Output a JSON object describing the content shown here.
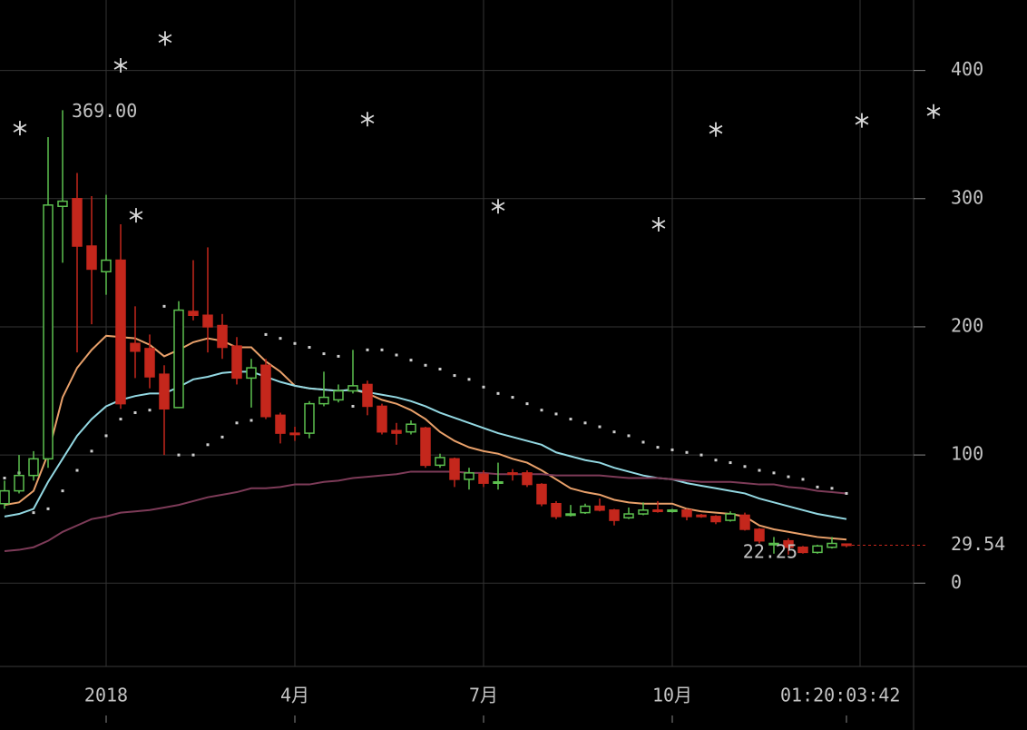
{
  "chart_data": {
    "type": "candlestick",
    "categories": [
      null,
      null,
      null,
      null,
      null,
      null,
      null,
      "2018",
      null,
      null,
      null,
      null,
      null,
      null,
      null,
      null,
      null,
      null,
      null,
      null,
      "4月",
      null,
      null,
      null,
      null,
      null,
      null,
      null,
      null,
      null,
      null,
      null,
      null,
      "7月",
      null,
      null,
      null,
      null,
      null,
      null,
      null,
      null,
      null,
      null,
      null,
      null,
      "10月",
      null,
      null,
      null,
      null,
      null,
      null,
      null,
      null,
      null,
      null,
      null,
      null
    ],
    "open": [
      62,
      72,
      84,
      97,
      294,
      300,
      263,
      243,
      252,
      187,
      183,
      163,
      137,
      212,
      209,
      201,
      185,
      160,
      170,
      131,
      117,
      117,
      140,
      143,
      150,
      155,
      138,
      119,
      118,
      121,
      92,
      97,
      81,
      85,
      78,
      86,
      86,
      77,
      62,
      53,
      55,
      60,
      57,
      51,
      54,
      57,
      56,
      57,
      53,
      52,
      49,
      53,
      42,
      30,
      33,
      28,
      24,
      28,
      30.5
    ],
    "high": [
      80,
      100,
      103,
      348,
      369,
      320,
      302,
      303,
      280,
      216,
      194,
      170,
      220,
      252,
      262,
      210,
      192,
      175,
      175,
      133,
      122,
      142,
      165,
      155,
      182,
      158,
      140,
      125,
      127,
      122,
      101,
      98,
      90,
      88,
      94,
      89,
      88,
      78,
      64,
      61,
      62,
      66,
      58,
      59,
      63,
      64,
      58,
      58,
      54,
      53,
      56,
      55,
      43,
      36,
      35,
      29,
      30,
      36,
      31
    ],
    "low": [
      58,
      70,
      80,
      90,
      250,
      180,
      202,
      225,
      136,
      160,
      152,
      100,
      137,
      205,
      180,
      175,
      155,
      137,
      128,
      109,
      111,
      113,
      138,
      141,
      148,
      131,
      116,
      108,
      116,
      90,
      90,
      75,
      73,
      75,
      73,
      80,
      75,
      60,
      50,
      52,
      54,
      56,
      45,
      50,
      53,
      55,
      55,
      49,
      51,
      46,
      48,
      41,
      31,
      23,
      22.25,
      23,
      23,
      27,
      28
    ],
    "close": [
      72,
      84,
      97,
      295,
      298,
      263,
      245,
      252,
      140,
      181,
      161,
      136,
      213,
      209,
      200,
      184,
      160,
      168,
      130,
      117,
      116,
      140,
      145,
      150,
      154,
      138,
      118,
      117,
      124,
      92,
      98,
      81,
      86,
      78,
      79,
      85,
      77,
      62,
      52,
      54,
      60,
      57,
      49,
      54,
      57,
      56,
      57,
      52,
      52,
      48,
      54,
      42,
      33,
      31,
      28,
      24,
      29,
      31,
      29.54
    ],
    "up_color": "#5cc04f",
    "down_color": "#c4271c",
    "lines": [
      {
        "color": "#e8a06a",
        "values": [
          61,
          63,
          72,
          101,
          145,
          168,
          182,
          193,
          192,
          191,
          186,
          177,
          182,
          188,
          191,
          189,
          184,
          184,
          173,
          165,
          154,
          152,
          151,
          150,
          151,
          148,
          143,
          140,
          135,
          128,
          118,
          111,
          106,
          103,
          101,
          97,
          94,
          88,
          81,
          74,
          71,
          69,
          65,
          63,
          62,
          62,
          62,
          58,
          56,
          55,
          54,
          52,
          45,
          42,
          40,
          38,
          36,
          35,
          34
        ]
      },
      {
        "color": "#93d8e2",
        "values": [
          52,
          54,
          58,
          79,
          97,
          115,
          128,
          138,
          143,
          146,
          148,
          148,
          153,
          159,
          161,
          164,
          165,
          165,
          161,
          157,
          154,
          152,
          151,
          150,
          151,
          149,
          147,
          145,
          142,
          138,
          133,
          129,
          125,
          121,
          117,
          114,
          111,
          108,
          102,
          99,
          96,
          94,
          90,
          87,
          84,
          82,
          81,
          78,
          76,
          74,
          72,
          70,
          66,
          63,
          60,
          57,
          54,
          52,
          50
        ]
      },
      {
        "color": "#7d3b58",
        "values": [
          25,
          26,
          28,
          33,
          40,
          45,
          50,
          52,
          55,
          56,
          57,
          59,
          61,
          64,
          67,
          69,
          71,
          74,
          74,
          75,
          77,
          77,
          79,
          80,
          82,
          83,
          84,
          85,
          87,
          87,
          87,
          87,
          86,
          86,
          85,
          85,
          85,
          85,
          84,
          84,
          84,
          84,
          83,
          82,
          82,
          82,
          81,
          80,
          79,
          79,
          79,
          78,
          77,
          77,
          75,
          74,
          72,
          71,
          70
        ]
      }
    ],
    "sar": {
      "color": "#cfcfcf",
      "values": [
        82,
        86,
        55,
        58,
        72,
        88,
        103,
        115,
        128,
        133,
        135,
        216,
        100,
        100,
        108,
        114,
        125,
        127,
        194,
        191,
        187,
        184,
        179,
        177,
        138,
        182,
        182,
        178,
        174,
        170,
        167,
        162,
        159,
        153,
        148,
        145,
        140,
        135,
        132,
        128,
        125,
        122,
        118,
        115,
        110,
        106,
        104,
        102,
        100,
        96,
        94,
        91,
        88,
        86,
        83,
        81,
        75,
        74,
        70
      ]
    },
    "markers": {
      "color": "#d8d8d8",
      "x": [
        1.06,
        8,
        11.06,
        9.06,
        25,
        34,
        45.06,
        49,
        59.06,
        64
      ],
      "values": [
        355,
        404,
        425,
        287,
        362,
        294,
        280,
        354,
        361,
        368
      ]
    },
    "ylim": [
      -65,
      455
    ],
    "yticks": [
      0,
      100,
      200,
      300,
      400
    ],
    "grid": true,
    "max_label": "369.00",
    "min_label": "22.25",
    "last_label": "29.54",
    "countdown": "01:20:03:42"
  }
}
